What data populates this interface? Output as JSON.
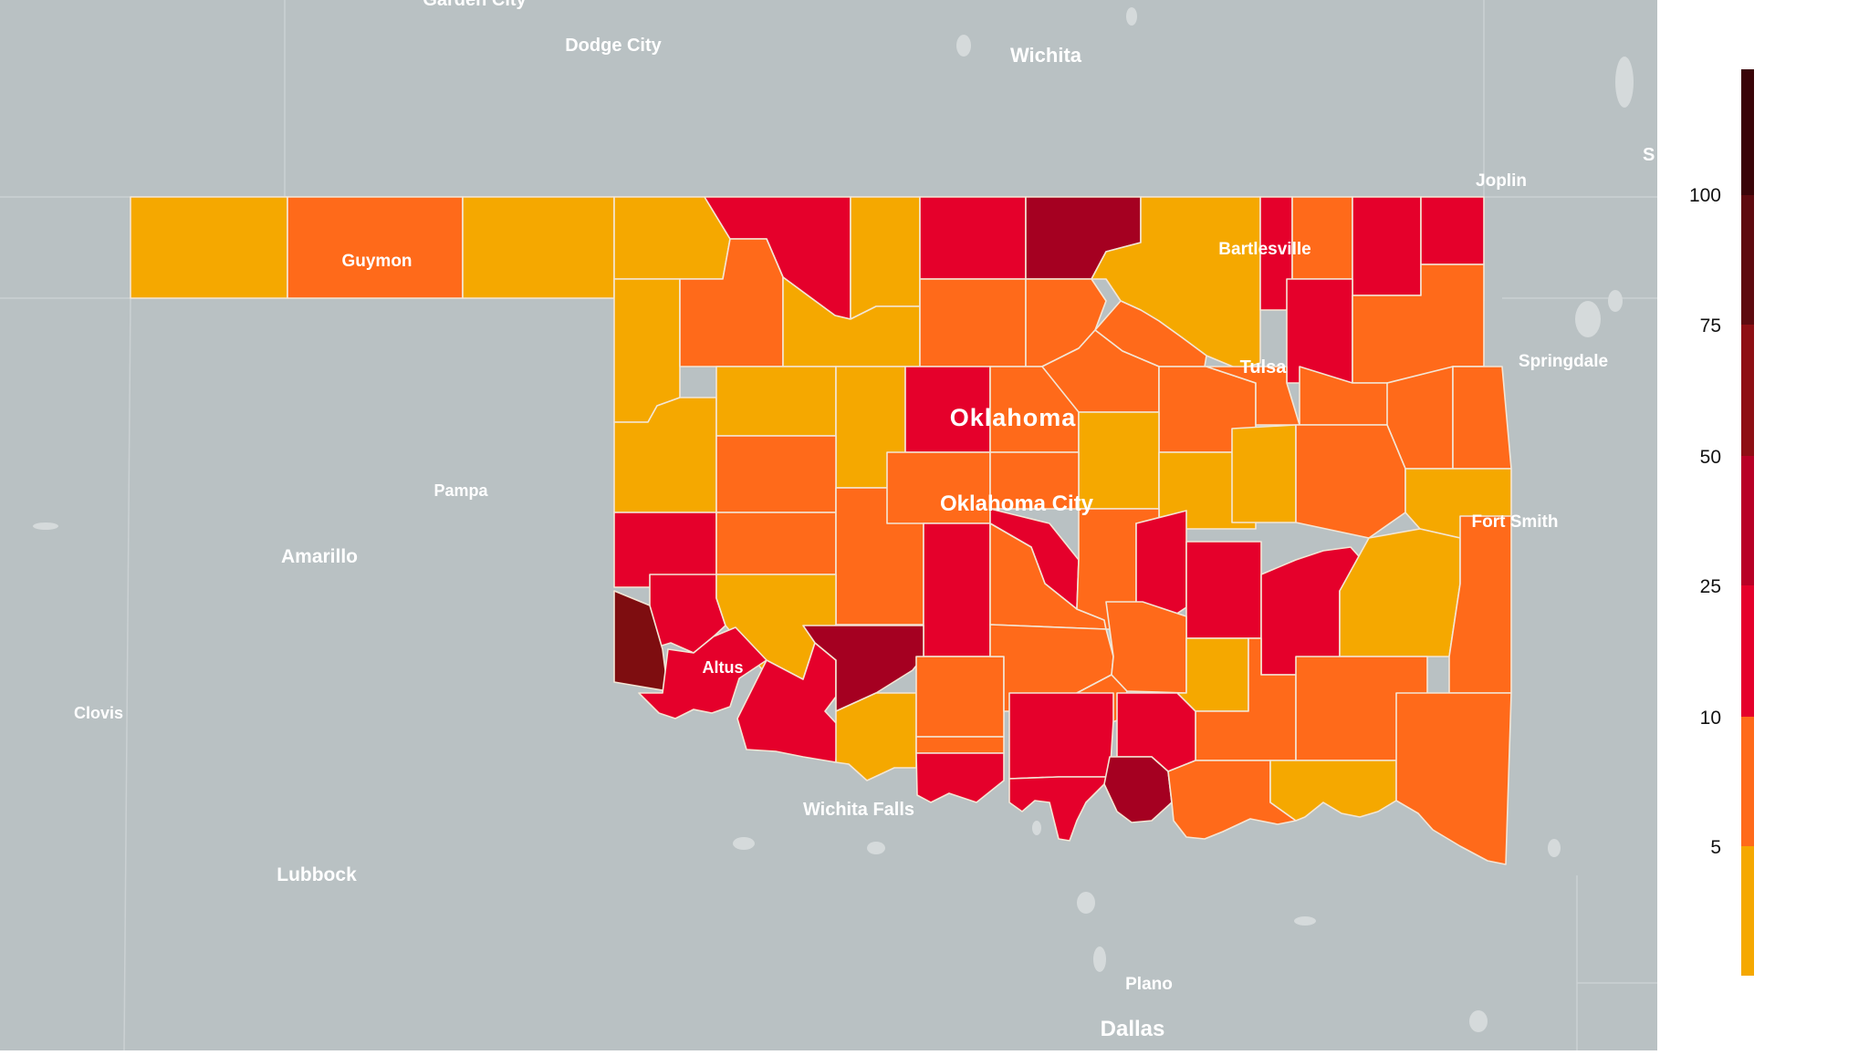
{
  "map": {
    "state_label": "Oklahoma",
    "cities": [
      {
        "id": "garden-city",
        "name": "Garden City"
      },
      {
        "id": "dodge-city",
        "name": "Dodge City"
      },
      {
        "id": "wichita",
        "name": "Wichita"
      },
      {
        "id": "joplin",
        "name": "Joplin"
      },
      {
        "id": "bartlesville",
        "name": "Bartlesville"
      },
      {
        "id": "guymon",
        "name": "Guymon"
      },
      {
        "id": "tulsa",
        "name": "Tulsa"
      },
      {
        "id": "springdale",
        "name": "Springdale"
      },
      {
        "id": "oklahoma-city",
        "name": "Oklahoma City"
      },
      {
        "id": "fort-smith",
        "name": "Fort Smith"
      },
      {
        "id": "pampa",
        "name": "Pampa"
      },
      {
        "id": "amarillo",
        "name": "Amarillo"
      },
      {
        "id": "altus",
        "name": "Altus"
      },
      {
        "id": "clovis",
        "name": "Clovis"
      },
      {
        "id": "wichita-falls",
        "name": "Wichita Falls"
      },
      {
        "id": "lubbock",
        "name": "Lubbock"
      },
      {
        "id": "plano",
        "name": "Plano"
      },
      {
        "id": "dallas",
        "name": "Dallas"
      },
      {
        "id": "cut-off-s",
        "name": "S"
      }
    ]
  },
  "legend": {
    "ticks": [
      "100",
      "75",
      "50",
      "25",
      "10",
      "5"
    ],
    "bins": [
      {
        "color": "#F5A800"
      },
      {
        "color": "#FF6A1A"
      },
      {
        "color": "#E5002B"
      },
      {
        "color": "#B80026"
      },
      {
        "color": "#8E0F14"
      },
      {
        "color": "#5E0A0F"
      },
      {
        "color": "#3A0408"
      }
    ]
  },
  "colors": {
    "background": "#B9C1C3",
    "yellow": "#F5A800",
    "orange": "#FF6A1A",
    "red": "#E5002B",
    "crimson": "#B80026",
    "maroon": "#7E0D10"
  }
}
